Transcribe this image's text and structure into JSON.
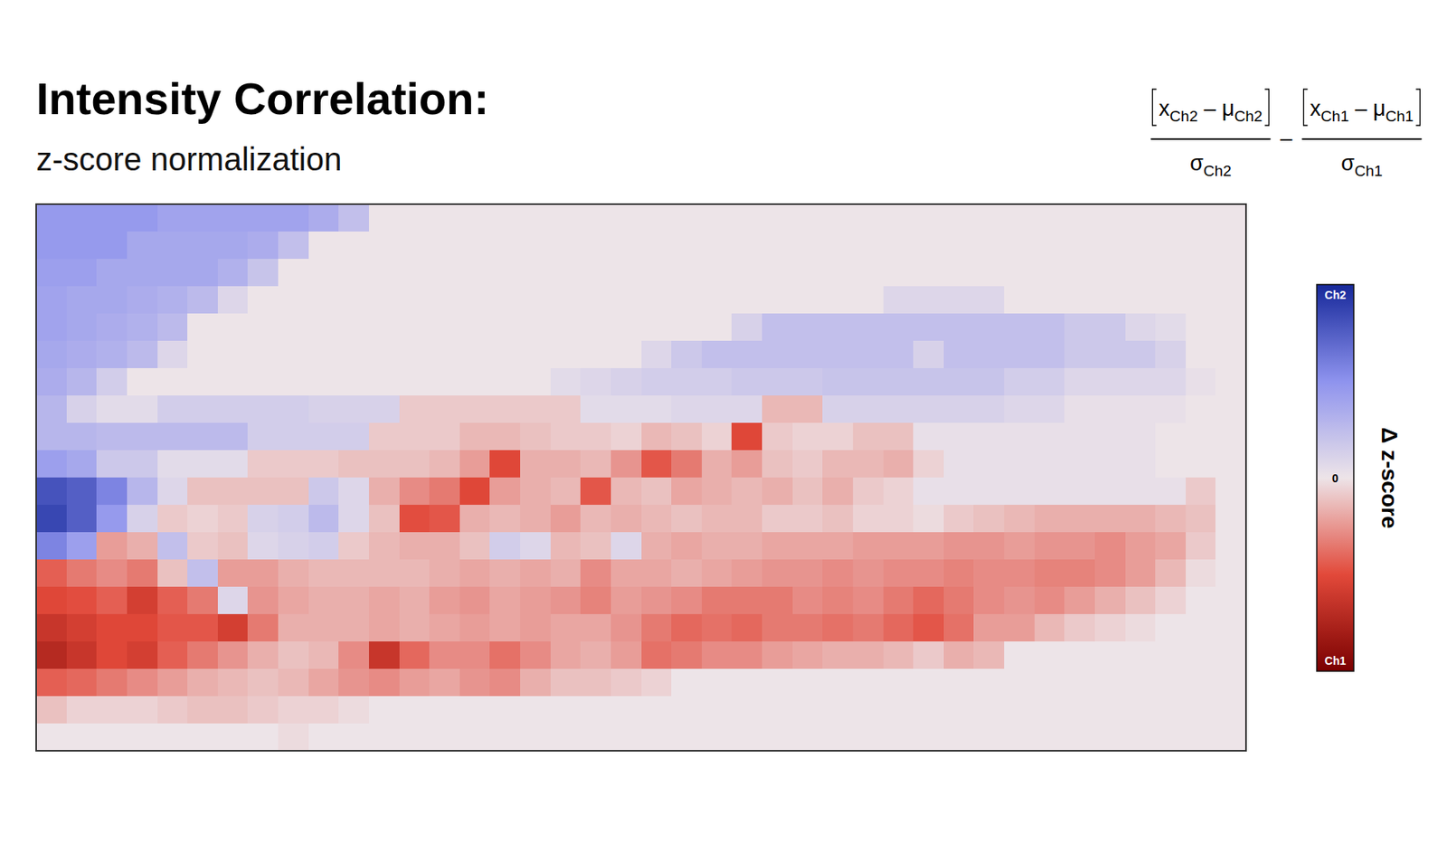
{
  "chart_data": {
    "type": "heatmap",
    "title": "Intensity Correlation:",
    "subtitle": "z-score normalization",
    "formula": {
      "terms": [
        {
          "numerator": [
            {
              "text": "x",
              "sub": "Ch2"
            },
            {
              "text": " – "
            },
            {
              "text": "μ",
              "sub": "Ch2"
            }
          ],
          "denominator": {
            "text": "σ",
            "sub": "Ch2"
          }
        },
        {
          "numerator": [
            {
              "text": "x",
              "sub": "Ch1"
            },
            {
              "text": " – "
            },
            {
              "text": "μ",
              "sub": "Ch1"
            }
          ],
          "denominator": {
            "text": "σ",
            "sub": "Ch1"
          }
        }
      ],
      "operator": "–"
    },
    "tick_labels": false,
    "colorbar": {
      "label": "Δ z-score",
      "lim": [
        -3.5,
        3.5
      ],
      "ticks": [
        {
          "value": 3.5,
          "label": "Ch2"
        },
        0,
        {
          "value": -3.5,
          "label": "Ch1"
        }
      ]
    },
    "z": [
      [
        1.6,
        1.6,
        1.6,
        1.6,
        1.4,
        1.4,
        1.4,
        1.4,
        1.4,
        1.2,
        0.8,
        0,
        0,
        0,
        0,
        0,
        0,
        0,
        0,
        0,
        0,
        0,
        0,
        0,
        0,
        0,
        0,
        0,
        0,
        0,
        0,
        0,
        0,
        0,
        0,
        0,
        0,
        0,
        0,
        0
      ],
      [
        1.6,
        1.6,
        1.6,
        1.3,
        1.3,
        1.3,
        1.3,
        1.2,
        0.8,
        0,
        0,
        0,
        0,
        0,
        0,
        0,
        0,
        0,
        0,
        0,
        0,
        0,
        0,
        0,
        0,
        0,
        0,
        0,
        0,
        0,
        0,
        0,
        0,
        0,
        0,
        0,
        0,
        0,
        0,
        0
      ],
      [
        1.5,
        1.5,
        1.3,
        1.3,
        1.3,
        1.3,
        1.1,
        0.7,
        0,
        0,
        0,
        0,
        0,
        0,
        0,
        0,
        0,
        0,
        0,
        0,
        0,
        0,
        0,
        0,
        0,
        0,
        0,
        0,
        0,
        0,
        0,
        0,
        0,
        0,
        0,
        0,
        0,
        0,
        0,
        0
      ],
      [
        1.4,
        1.3,
        1.3,
        1.2,
        1.1,
        0.9,
        0.3,
        0,
        0,
        0,
        0,
        0,
        0,
        0,
        0,
        0,
        0,
        0,
        0,
        0,
        0,
        0,
        0,
        0,
        0,
        0,
        0,
        0,
        0.3,
        0.3,
        0.3,
        0.3,
        0,
        0,
        0,
        0,
        0,
        0,
        0,
        0
      ],
      [
        1.4,
        1.3,
        1.2,
        1.1,
        0.9,
        0,
        0,
        0,
        0,
        0,
        0,
        0,
        0,
        0,
        0,
        0,
        0,
        0,
        0,
        0,
        0,
        0,
        0,
        0.4,
        0.8,
        0.8,
        0.8,
        0.8,
        0.8,
        0.8,
        0.8,
        0.8,
        0.8,
        0.8,
        0.6,
        0.6,
        0.3,
        0.2,
        0,
        0
      ],
      [
        1.3,
        1.2,
        1.1,
        0.9,
        0.3,
        0,
        0,
        0,
        0,
        0,
        0,
        0,
        0,
        0,
        0,
        0,
        0,
        0,
        0,
        0,
        0.3,
        0.6,
        0.8,
        0.8,
        0.8,
        0.8,
        0.8,
        0.8,
        0.8,
        0.4,
        0.8,
        0.8,
        0.8,
        0.8,
        0.6,
        0.6,
        0.6,
        0.4,
        0,
        0
      ],
      [
        1.2,
        1.0,
        0.5,
        0,
        0,
        0,
        0,
        0,
        0,
        0,
        0,
        0,
        0,
        0,
        0,
        0,
        0,
        0.2,
        0.3,
        0.4,
        0.5,
        0.5,
        0.5,
        0.6,
        0.6,
        0.6,
        0.7,
        0.7,
        0.7,
        0.7,
        0.7,
        0.7,
        0.5,
        0.5,
        0.3,
        0.3,
        0.3,
        0.3,
        0.1,
        0
      ],
      [
        1.0,
        0.4,
        0.2,
        0.2,
        0.5,
        0.5,
        0.5,
        0.5,
        0.5,
        0.4,
        0.4,
        0.4,
        -0.3,
        -0.3,
        -0.3,
        -0.3,
        -0.3,
        -0.3,
        0.2,
        0.2,
        0.2,
        0.3,
        0.3,
        0.3,
        -0.5,
        -0.5,
        0.4,
        0.4,
        0.4,
        0.4,
        0.4,
        0.4,
        0.3,
        0.3,
        0.1,
        0.1,
        0.1,
        0.1,
        0,
        0
      ],
      [
        1.0,
        1.0,
        0.9,
        0.9,
        0.9,
        0.9,
        0.9,
        0.5,
        0.5,
        0.5,
        0.5,
        -0.3,
        -0.3,
        -0.3,
        -0.5,
        -0.5,
        -0.4,
        -0.3,
        -0.3,
        -0.2,
        -0.5,
        -0.4,
        -0.2,
        -1.8,
        -0.3,
        -0.2,
        -0.2,
        -0.4,
        -0.4,
        0.1,
        0.1,
        0.1,
        0.1,
        0.1,
        0.1,
        0.1,
        0.1,
        0,
        0,
        0
      ],
      [
        1.5,
        1.3,
        0.6,
        0.6,
        0.2,
        0.2,
        0.2,
        -0.3,
        -0.3,
        -0.3,
        -0.4,
        -0.4,
        -0.4,
        -0.5,
        -0.8,
        -1.8,
        -0.6,
        -0.6,
        -0.5,
        -0.9,
        -1.6,
        -1.2,
        -0.6,
        -0.8,
        -0.4,
        -0.3,
        -0.5,
        -0.5,
        -0.6,
        -0.2,
        0.1,
        0.1,
        0.1,
        0.1,
        0.1,
        0.1,
        0.1,
        0,
        0,
        0
      ],
      [
        2.8,
        2.6,
        2.0,
        1.0,
        0.3,
        -0.4,
        -0.4,
        -0.4,
        -0.4,
        0.6,
        0.3,
        -0.6,
        -1.0,
        -1.2,
        -1.8,
        -0.8,
        -0.6,
        -0.5,
        -1.6,
        -0.5,
        -0.4,
        -0.7,
        -0.6,
        -0.5,
        -0.6,
        -0.4,
        -0.6,
        -0.3,
        -0.2,
        0.1,
        0.1,
        0.1,
        0.1,
        0.1,
        0.1,
        0.1,
        0.1,
        0.1,
        -0.3,
        0
      ],
      [
        3.0,
        2.6,
        1.6,
        0.4,
        -0.3,
        -0.2,
        -0.3,
        0.4,
        0.5,
        0.9,
        0.3,
        -0.4,
        -1.7,
        -1.6,
        -0.6,
        -0.5,
        -0.6,
        -0.8,
        -0.5,
        -0.6,
        -0.5,
        -0.4,
        -0.5,
        -0.5,
        -0.3,
        -0.3,
        -0.4,
        -0.2,
        -0.2,
        -0.1,
        -0.3,
        -0.4,
        -0.5,
        -0.6,
        -0.6,
        -0.6,
        -0.6,
        -0.5,
        -0.4,
        0
      ],
      [
        2.0,
        1.5,
        -0.8,
        -0.6,
        0.8,
        -0.3,
        -0.4,
        0.3,
        0.4,
        0.5,
        -0.3,
        -0.5,
        -0.6,
        -0.6,
        -0.4,
        0.5,
        0.3,
        -0.5,
        -0.4,
        0.3,
        -0.6,
        -0.7,
        -0.6,
        -0.6,
        -0.7,
        -0.7,
        -0.7,
        -0.8,
        -0.8,
        -0.8,
        -0.9,
        -0.9,
        -0.8,
        -0.9,
        -0.9,
        -1.0,
        -0.8,
        -0.7,
        -0.3,
        0
      ],
      [
        -1.5,
        -1.2,
        -1.0,
        -1.2,
        -0.4,
        0.8,
        -0.8,
        -0.8,
        -0.6,
        -0.5,
        -0.5,
        -0.5,
        -0.5,
        -0.6,
        -0.7,
        -0.6,
        -0.7,
        -0.6,
        -1.0,
        -0.7,
        -0.7,
        -0.6,
        -0.7,
        -0.8,
        -0.9,
        -0.9,
        -1.0,
        -0.9,
        -1.0,
        -1.0,
        -1.1,
        -1.0,
        -1.0,
        -1.1,
        -1.1,
        -1.0,
        -0.8,
        -0.5,
        -0.1,
        0
      ],
      [
        -1.8,
        -1.7,
        -1.5,
        -2.0,
        -1.5,
        -1.2,
        0.3,
        -0.9,
        -0.7,
        -0.6,
        -0.6,
        -0.7,
        -0.6,
        -0.8,
        -0.9,
        -0.7,
        -0.8,
        -0.9,
        -1.1,
        -0.8,
        -0.9,
        -1.0,
        -1.2,
        -1.2,
        -1.2,
        -1.0,
        -1.1,
        -1.0,
        -1.2,
        -1.4,
        -1.2,
        -1.0,
        -0.9,
        -1.0,
        -0.8,
        -0.6,
        -0.4,
        -0.2,
        0,
        0
      ],
      [
        -2.2,
        -2.0,
        -1.8,
        -1.8,
        -1.6,
        -1.6,
        -2.0,
        -1.2,
        -0.6,
        -0.6,
        -0.6,
        -0.7,
        -0.6,
        -0.7,
        -0.8,
        -0.7,
        -0.8,
        -0.7,
        -0.7,
        -0.9,
        -1.2,
        -1.4,
        -1.3,
        -1.4,
        -1.2,
        -1.2,
        -1.3,
        -1.2,
        -1.4,
        -1.6,
        -1.3,
        -0.8,
        -0.8,
        -0.5,
        -0.3,
        -0.2,
        -0.1,
        0,
        0,
        0
      ],
      [
        -2.5,
        -2.2,
        -1.8,
        -2.0,
        -1.5,
        -1.2,
        -0.9,
        -0.6,
        -0.4,
        -0.5,
        -1.0,
        -2.2,
        -1.4,
        -1.0,
        -1.0,
        -1.3,
        -1.0,
        -0.7,
        -0.6,
        -0.8,
        -1.3,
        -1.2,
        -1.0,
        -1.0,
        -0.8,
        -0.7,
        -0.6,
        -0.6,
        -0.5,
        -0.3,
        -0.6,
        -0.5,
        0,
        0,
        0,
        0,
        0,
        0,
        0,
        0
      ],
      [
        -1.5,
        -1.4,
        -1.2,
        -1.0,
        -0.8,
        -0.6,
        -0.5,
        -0.4,
        -0.5,
        -0.7,
        -0.9,
        -1.0,
        -0.8,
        -0.7,
        -0.9,
        -1.0,
        -0.6,
        -0.4,
        -0.4,
        -0.3,
        -0.2,
        0,
        0,
        0,
        0,
        0,
        0,
        0,
        0,
        0,
        0,
        0,
        0,
        0,
        0,
        0,
        0,
        0,
        0,
        0
      ],
      [
        -0.4,
        -0.2,
        -0.2,
        -0.2,
        -0.3,
        -0.4,
        -0.4,
        -0.3,
        -0.2,
        -0.2,
        -0.1,
        0,
        0,
        0,
        0,
        0,
        0,
        0,
        0,
        0,
        0,
        0,
        0,
        0,
        0,
        0,
        0,
        0,
        0,
        0,
        0,
        0,
        0,
        0,
        0,
        0,
        0,
        0,
        0,
        0
      ],
      [
        0,
        0,
        0,
        0,
        0,
        0,
        0,
        0,
        -0.1,
        0,
        0,
        0,
        0,
        0,
        0,
        0,
        0,
        0,
        0,
        0,
        0,
        0,
        0,
        0,
        0,
        0,
        0,
        0,
        0,
        0,
        0,
        0,
        0,
        0,
        0,
        0,
        0,
        0,
        0,
        0
      ]
    ]
  }
}
